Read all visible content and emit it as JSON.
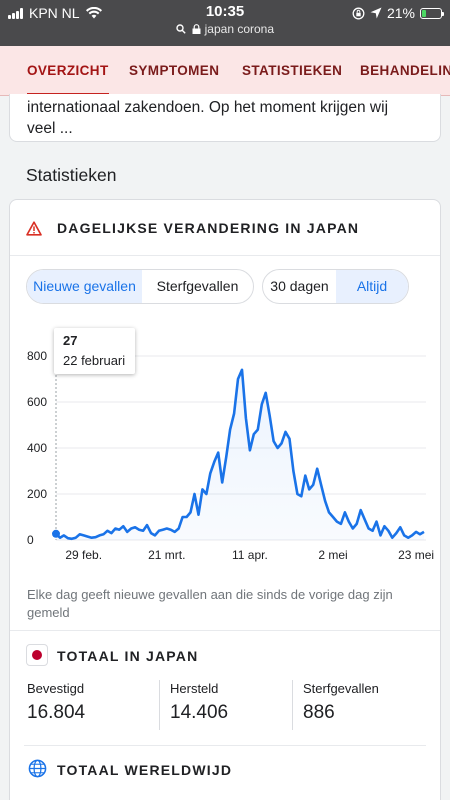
{
  "status_bar": {
    "carrier": "KPN NL",
    "time": "10:35",
    "url": "japan corona",
    "battery": "21%",
    "battery_level": 0.21
  },
  "tabs": [
    {
      "label": "OVERZICHT",
      "active": true
    },
    {
      "label": "SYMPTOMEN",
      "active": false
    },
    {
      "label": "STATISTIEKEN",
      "active": false
    },
    {
      "label": "BEHANDELING",
      "active": false
    }
  ],
  "snippet": {
    "line1": "internationaal zakendoen. Op het moment krijgen wij",
    "line2": "veel ..."
  },
  "section_title": "Statistieken",
  "stats_card": {
    "title": "DAGELIJKSE VERANDERING IN JAPAN",
    "metric_toggle": {
      "options": [
        "Nieuwe gevallen",
        "Sterfgevallen"
      ],
      "selected": "Nieuwe gevallen"
    },
    "range_toggle": {
      "options": [
        "30 dagen",
        "Altijd"
      ],
      "selected": "Altijd"
    },
    "tooltip": {
      "value": "27",
      "date": "22 februari"
    },
    "footnote": "Elke dag geeft nieuwe gevallen aan die sinds de vorige dag zijn gemeld"
  },
  "chart_data": {
    "type": "area",
    "title": "",
    "xlabel": "",
    "ylabel": "",
    "ylim": [
      0,
      800
    ],
    "y_ticks": [
      0,
      200,
      400,
      600,
      800
    ],
    "x_tick_labels": [
      "29 feb.",
      "21 mrt.",
      "11 apr.",
      "2 mei",
      "23 mei"
    ],
    "x_tick_days": [
      7,
      28,
      49,
      70,
      91
    ],
    "grid": true,
    "series": [
      {
        "days": [
          0,
          1,
          2,
          3,
          4,
          5,
          6,
          7,
          8,
          9,
          10,
          11,
          12,
          13,
          14,
          15,
          16,
          17,
          18,
          19,
          20,
          21,
          22,
          23,
          24,
          25,
          26,
          27,
          28,
          29,
          30,
          31,
          32,
          33,
          34,
          35,
          36,
          37,
          38,
          39,
          40,
          41,
          42,
          43,
          44,
          45,
          46,
          47,
          48,
          49,
          50,
          51,
          52,
          53,
          54,
          55,
          56,
          57,
          58,
          59,
          60,
          61,
          62,
          63,
          64,
          65,
          66,
          67,
          68,
          69,
          70,
          71,
          72,
          73,
          74,
          75,
          76,
          77,
          78,
          79,
          80,
          81,
          82,
          83,
          84,
          85,
          86,
          87,
          88,
          89,
          90,
          91,
          92,
          93
        ],
        "values": [
          27,
          10,
          20,
          8,
          5,
          10,
          25,
          20,
          15,
          10,
          12,
          20,
          25,
          40,
          30,
          50,
          45,
          60,
          35,
          50,
          55,
          45,
          40,
          65,
          30,
          20,
          40,
          45,
          50,
          45,
          35,
          50,
          100,
          100,
          120,
          200,
          110,
          220,
          200,
          290,
          340,
          380,
          250,
          360,
          480,
          550,
          700,
          740,
          530,
          390,
          460,
          480,
          590,
          640,
          540,
          430,
          400,
          420,
          470,
          440,
          300,
          200,
          190,
          280,
          220,
          240,
          310,
          240,
          170,
          120,
          100,
          80,
          70,
          120,
          80,
          50,
          70,
          130,
          90,
          50,
          40,
          80,
          20,
          60,
          40,
          10,
          30,
          55,
          20,
          10,
          20,
          35,
          25,
          35
        ]
      }
    ]
  },
  "totals_japan": {
    "title": "TOTAAL IN JAPAN",
    "confirmed": {
      "label": "Bevestigd",
      "value": "16.804"
    },
    "recovered": {
      "label": "Hersteld",
      "value": "14.406"
    },
    "deaths": {
      "label": "Sterfgevallen",
      "value": "886"
    }
  },
  "totals_world": {
    "title": "TOTAAL WERELDWIJD"
  },
  "colors": {
    "accent": "#1a73e8",
    "tab_text": "#a31414",
    "tab_bg": "#fbe6e6",
    "warning": "#d93025",
    "flag_red": "#bc002d"
  }
}
